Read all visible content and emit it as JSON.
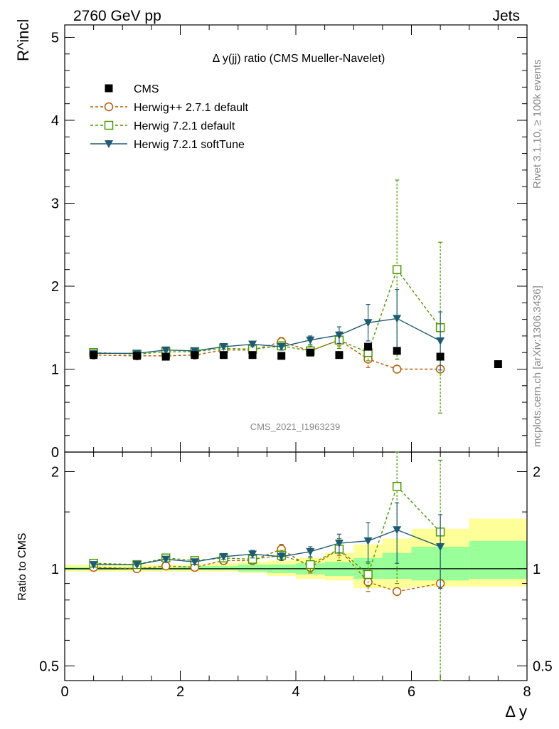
{
  "header": {
    "left": "2760 GeV pp",
    "right": "Jets"
  },
  "side_labels": {
    "rivet": "Rivet 3.1.10, ≥ 100k events",
    "mcplots": "mcplots.cern.ch [arXiv:1306.3436]"
  },
  "watermark": "CMS_2021_I1963239",
  "chart_data": [
    {
      "type": "scatter",
      "panel": "main",
      "title": "Δ y(jj) ratio (CMS Mueller-Navelet)",
      "ylabel": "R^incl",
      "ylim": [
        0,
        5.15
      ],
      "yticks": [
        0,
        1,
        2,
        3,
        4,
        5
      ],
      "ytick_labels": [
        "0",
        "1",
        "2",
        "3",
        "4",
        "5"
      ],
      "series": [
        {
          "name": "CMS",
          "style": "filled-square",
          "color": "#000000",
          "x": [
            0.5,
            1.25,
            1.75,
            2.25,
            2.75,
            3.25,
            3.75,
            4.25,
            4.75,
            5.25,
            5.75,
            6.5,
            7.5
          ],
          "y": [
            1.17,
            1.16,
            1.15,
            1.17,
            1.17,
            1.17,
            1.16,
            1.2,
            1.17,
            1.27,
            1.22,
            1.15,
            1.06
          ],
          "err": [
            0.01,
            0.01,
            0.01,
            0.01,
            0.01,
            0.01,
            0.01,
            0.01,
            0.01,
            0.02,
            0.02,
            0.02,
            0.02
          ]
        },
        {
          "name": "Herwig++ 2.7.1 default",
          "style": "open-circle-dashed",
          "color": "#b35900",
          "x": [
            0.5,
            1.25,
            1.75,
            2.25,
            2.75,
            3.25,
            3.75,
            4.25,
            4.75,
            5.25,
            5.75,
            6.5
          ],
          "y": [
            1.17,
            1.16,
            1.16,
            1.17,
            1.23,
            1.23,
            1.33,
            1.22,
            1.35,
            1.12,
            1.0,
            1.0
          ],
          "err": [
            0.02,
            0.02,
            0.02,
            0.02,
            0.03,
            0.03,
            0.05,
            0.05,
            0.07,
            0.1,
            0.0,
            0.0
          ]
        },
        {
          "name": "Herwig 7.2.1 default",
          "style": "open-square-dashed",
          "color": "#4d9900",
          "x": [
            0.5,
            1.25,
            1.75,
            2.25,
            2.75,
            3.25,
            3.75,
            4.25,
            4.75,
            5.25,
            5.75,
            6.5
          ],
          "y": [
            1.2,
            1.18,
            1.21,
            1.21,
            1.25,
            1.24,
            1.28,
            1.22,
            1.35,
            1.2,
            2.2,
            1.5
          ],
          "err": [
            0.02,
            0.02,
            0.02,
            0.02,
            0.03,
            0.04,
            0.05,
            0.06,
            0.1,
            0.1,
            1.08,
            1.03
          ]
        },
        {
          "name": "Herwig 7.2.1 softTune",
          "style": "filled-triangle-down-solid",
          "color": "#1e5b73",
          "x": [
            0.5,
            1.25,
            1.75,
            2.25,
            2.75,
            3.25,
            3.75,
            4.25,
            4.75,
            5.25,
            5.75,
            6.5
          ],
          "y": [
            1.19,
            1.19,
            1.23,
            1.22,
            1.27,
            1.3,
            1.27,
            1.35,
            1.41,
            1.56,
            1.61,
            1.34
          ],
          "err": [
            0.02,
            0.02,
            0.02,
            0.02,
            0.03,
            0.03,
            0.04,
            0.05,
            0.1,
            0.22,
            0.35,
            0.35
          ]
        }
      ]
    },
    {
      "type": "scatter",
      "panel": "ratio",
      "ylabel": "Ratio to CMS",
      "xlabel": "Δ y",
      "xlim": [
        0,
        8
      ],
      "xticks": [
        0,
        2,
        4,
        6,
        8
      ],
      "xtick_labels": [
        "0",
        "2",
        "4",
        "6",
        "8"
      ],
      "ylim": [
        0.45,
        2.3
      ],
      "yscale": "log",
      "yticks": [
        0.5,
        1,
        2
      ],
      "ytick_labels": [
        "0.5",
        "1",
        "2"
      ],
      "bands": {
        "x_edges": [
          0,
          1.0,
          1.5,
          2.0,
          2.5,
          3.0,
          3.5,
          4.0,
          4.5,
          5.0,
          5.5,
          6.0,
          7.0,
          8.0
        ],
        "inner_lo": [
          0.99,
          0.99,
          0.99,
          0.99,
          0.99,
          0.98,
          0.97,
          0.96,
          0.95,
          0.93,
          0.93,
          0.92,
          0.93
        ],
        "inner_hi": [
          1.01,
          1.01,
          1.01,
          1.02,
          1.02,
          1.03,
          1.03,
          1.04,
          1.05,
          1.08,
          1.12,
          1.17,
          1.22
        ],
        "outer_lo": [
          0.98,
          0.98,
          0.98,
          0.98,
          0.98,
          0.97,
          0.95,
          0.93,
          0.92,
          0.87,
          0.87,
          0.88,
          0.88
        ],
        "outer_hi": [
          1.03,
          1.03,
          1.03,
          1.03,
          1.04,
          1.05,
          1.06,
          1.08,
          1.12,
          1.19,
          1.24,
          1.33,
          1.43
        ],
        "inner_color": "#99ff99",
        "outer_color": "#ffff99"
      },
      "series": [
        {
          "name": "Herwig++ 2.7.1 default",
          "style": "open-circle-dashed",
          "color": "#b35900",
          "x": [
            0.5,
            1.25,
            1.75,
            2.25,
            2.75,
            3.25,
            3.75,
            4.25,
            4.75,
            5.25,
            5.75,
            6.5
          ],
          "y": [
            1.01,
            1.0,
            1.02,
            1.01,
            1.06,
            1.06,
            1.15,
            1.01,
            1.15,
            0.91,
            0.85,
            0.9
          ],
          "err": [
            0.01,
            0.01,
            0.01,
            0.01,
            0.02,
            0.02,
            0.04,
            0.04,
            0.05,
            0.06,
            0.0,
            0.0
          ]
        },
        {
          "name": "Herwig 7.2.1 default",
          "style": "open-square-dashed",
          "color": "#4d9900",
          "x": [
            0.5,
            1.25,
            1.75,
            2.25,
            2.75,
            3.25,
            3.75,
            4.25,
            4.75,
            5.25,
            5.75,
            6.5
          ],
          "y": [
            1.04,
            1.03,
            1.08,
            1.06,
            1.08,
            1.07,
            1.1,
            1.03,
            1.15,
            0.96,
            1.8,
            1.3
          ],
          "err": [
            0.02,
            0.02,
            0.02,
            0.02,
            0.03,
            0.03,
            0.04,
            0.05,
            0.09,
            0.08,
            0.9,
            0.87
          ]
        },
        {
          "name": "Herwig 7.2.1 softTune",
          "style": "filled-triangle-down-solid",
          "color": "#1e5b73",
          "x": [
            0.5,
            1.25,
            1.75,
            2.25,
            2.75,
            3.25,
            3.75,
            4.25,
            4.75,
            5.25,
            5.75,
            6.5
          ],
          "y": [
            1.03,
            1.03,
            1.07,
            1.05,
            1.09,
            1.11,
            1.09,
            1.13,
            1.2,
            1.22,
            1.32,
            1.17
          ],
          "err": [
            0.01,
            0.01,
            0.02,
            0.02,
            0.02,
            0.03,
            0.03,
            0.04,
            0.08,
            0.17,
            0.28,
            0.3
          ]
        }
      ]
    }
  ]
}
